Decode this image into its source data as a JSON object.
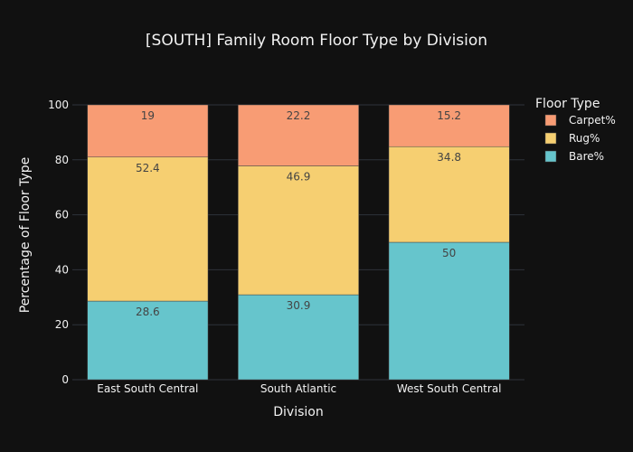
{
  "chart_data": {
    "type": "bar",
    "stacked": true,
    "title": "[SOUTH] Family Room Floor Type by Division",
    "xlabel": "Division",
    "ylabel": "Percentage of Floor Type",
    "ylim": [
      0,
      100
    ],
    "yticks": [
      0,
      20,
      40,
      60,
      80,
      100
    ],
    "categories": [
      "East South Central",
      "South Atlantic",
      "West South Central"
    ],
    "legend_title": "Floor Type",
    "legend_placement": "top-right",
    "grid": true,
    "series": [
      {
        "name": "Bare%",
        "color": "#66c5cc",
        "values": [
          28.6,
          30.9,
          50
        ]
      },
      {
        "name": "Rug%",
        "color": "#f6cf71",
        "values": [
          52.4,
          46.9,
          34.8
        ]
      },
      {
        "name": "Carpet%",
        "color": "#f89c74",
        "values": [
          19,
          22.2,
          15.2
        ]
      }
    ]
  }
}
